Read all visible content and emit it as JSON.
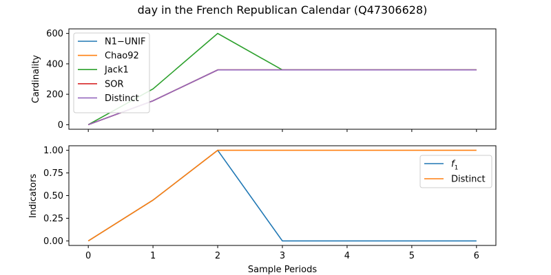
{
  "chart_data": [
    {
      "type": "line",
      "title": "day in the French Republican Calendar (Q47306628)",
      "xlabel": "",
      "ylabel": "Cardinality",
      "x": [
        0,
        1,
        2,
        3,
        4,
        5,
        6
      ],
      "xticks": [
        "0",
        "1",
        "2",
        "3",
        "4",
        "5",
        "6"
      ],
      "xlim": [
        -0.3,
        6.3
      ],
      "ylim": [
        -30,
        630
      ],
      "yticks": [
        0,
        200,
        400,
        600
      ],
      "ytick_labels": [
        "0",
        "200",
        "400",
        "600"
      ],
      "grid": false,
      "legend_position": "top-left",
      "series": [
        {
          "name": "N1−UNIF",
          "color": "#1f77b4",
          "values": [
            0,
            157,
            360,
            360,
            360,
            360,
            360
          ]
        },
        {
          "name": "Chao92",
          "color": "#ff7f0e",
          "values": [
            0,
            157,
            360,
            360,
            360,
            360,
            360
          ]
        },
        {
          "name": "Jack1",
          "color": "#2ca02c",
          "values": [
            0,
            235,
            600,
            360,
            360,
            360,
            360
          ]
        },
        {
          "name": "SOR",
          "color": "#d62728",
          "values": [
            0,
            157,
            360,
            360,
            360,
            360,
            360
          ]
        },
        {
          "name": "Distinct",
          "color": "#9467bd",
          "values": [
            0,
            157,
            360,
            360,
            360,
            360,
            360
          ]
        }
      ]
    },
    {
      "type": "line",
      "title": "",
      "xlabel": "Sample Periods",
      "ylabel": "Indicators",
      "x": [
        0,
        1,
        2,
        3,
        4,
        5,
        6
      ],
      "xticks": [
        "0",
        "1",
        "2",
        "3",
        "4",
        "5",
        "6"
      ],
      "xlim": [
        -0.3,
        6.3
      ],
      "ylim": [
        -0.05,
        1.05
      ],
      "yticks": [
        0,
        0.25,
        0.5,
        0.75,
        1.0
      ],
      "ytick_labels": [
        "0.00",
        "0.25",
        "0.50",
        "0.75",
        "1.00"
      ],
      "grid": false,
      "legend_position": "top-right",
      "series": [
        {
          "name": "f1",
          "color": "#1f77b4",
          "values": [
            0,
            0.45,
            1.0,
            0,
            0,
            0,
            0
          ]
        },
        {
          "name": "Distinct",
          "color": "#ff7f0e",
          "values": [
            0,
            0.45,
            1.0,
            1.0,
            1.0,
            1.0,
            1.0
          ]
        }
      ]
    }
  ]
}
